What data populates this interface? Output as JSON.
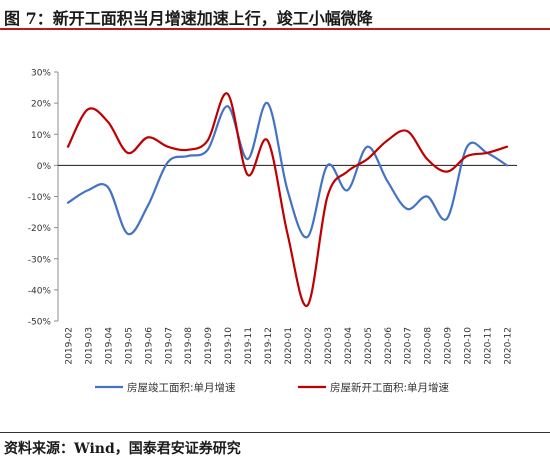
{
  "title": "图 7：新开工面积当月增速加速上行，竣工小幅微降",
  "source": "资料来源：Wind，国泰君安证券研究",
  "chart_data": {
    "type": "line",
    "categories": [
      "2019-02",
      "2019-03",
      "2019-04",
      "2019-05",
      "2019-06",
      "2019-07",
      "2019-08",
      "2019-09",
      "2019-10",
      "2019-11",
      "2019-12",
      "2020-01",
      "2020-02",
      "2020-03",
      "2020-04",
      "2020-05",
      "2020-06",
      "2020-07",
      "2020-08",
      "2020-09",
      "2020-10",
      "2020-11",
      "2020-12"
    ],
    "tick_labels": [
      "2019-02",
      "2019-03",
      "2019-04",
      "2019-05",
      "2019-06",
      "2019-07",
      "2019-08",
      "2019-09",
      "2019-10",
      "2019-11",
      "2019-12",
      "2020-01",
      "2020-02",
      "2020-03",
      "2020-04",
      "2020-05",
      "2020-06",
      "2020-07",
      "2020-08",
      "2020-09",
      "2020-10",
      "2020-11",
      "2020-12"
    ],
    "y_tick_labels": [
      "30%",
      "20%",
      "10%",
      "0%",
      "-10%",
      "-20%",
      "-30%",
      "-40%",
      "-50%"
    ],
    "y_ticks": [
      30,
      20,
      10,
      0,
      -10,
      -20,
      -30,
      -40,
      -50
    ],
    "ylim": [
      -50,
      30
    ],
    "unit": "%",
    "grid": false,
    "legend_position": "bottom",
    "series": [
      {
        "name": "房屋竣工面积:单月增速",
        "color": "#4472c4",
        "values": [
          -12,
          -8,
          -7,
          -22,
          -13,
          1,
          3,
          5,
          19,
          2,
          20,
          -8,
          -23,
          0,
          -8,
          6,
          -5,
          -14,
          -10,
          -17,
          6,
          4,
          0
        ]
      },
      {
        "name": "房屋新开工面积:单月增速",
        "color": "#c00000",
        "values": [
          6,
          18,
          14,
          4,
          9,
          6,
          5,
          8,
          23,
          -3,
          8,
          -22,
          -45,
          -10,
          -2,
          2,
          8,
          11,
          2,
          -2,
          3,
          4,
          6
        ]
      }
    ]
  }
}
